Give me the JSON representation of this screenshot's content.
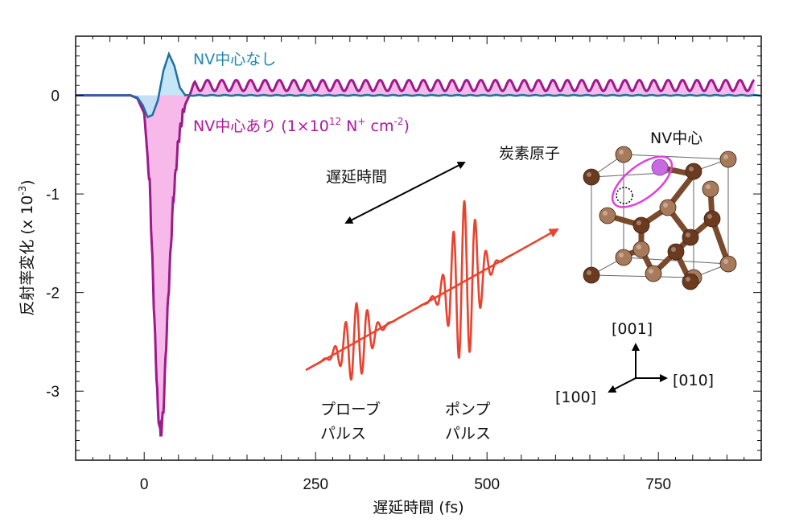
{
  "chart_data": {
    "type": "line",
    "title": "",
    "xlabel": "遅延時間 (fs)",
    "ylabel": "反射率変化 (x 10",
    "ylabel_exponent": "-3",
    "ylabel_close": ")",
    "xlim": [
      -100,
      900
    ],
    "ylim": [
      -3.7,
      0.6
    ],
    "xticks": [
      0,
      250,
      500,
      750
    ],
    "xtick_labels": [
      "0",
      "250",
      "500",
      "750"
    ],
    "yticks": [
      0,
      -1,
      -2,
      -3
    ],
    "ytick_labels": [
      "0",
      "-1",
      "-2",
      "-3"
    ],
    "series": [
      {
        "name": "NV中心なし",
        "color": "#1f6fa3",
        "fill": "#bfe3f5",
        "points": [
          [
            -100,
            0
          ],
          [
            -20,
            0
          ],
          [
            -10,
            -0.02
          ],
          [
            -2,
            -0.1
          ],
          [
            5,
            -0.22
          ],
          [
            12,
            -0.2
          ],
          [
            20,
            -0.05
          ],
          [
            28,
            0.25
          ],
          [
            36,
            0.42
          ],
          [
            44,
            0.3
          ],
          [
            52,
            0.08
          ],
          [
            60,
            0
          ],
          [
            900,
            0
          ]
        ]
      },
      {
        "name": "NV中心あり",
        "color": "#9b1b8a",
        "fill": "#f7b8ea",
        "dip_points": [
          [
            -100,
            0
          ],
          [
            -20,
            0
          ],
          [
            -10,
            -0.03
          ],
          [
            0,
            -0.18
          ],
          [
            8,
            -0.9
          ],
          [
            15,
            -2.3
          ],
          [
            20,
            -3.2
          ],
          [
            24,
            -3.45
          ],
          [
            28,
            -3.2
          ],
          [
            34,
            -2.2
          ],
          [
            42,
            -1.1
          ],
          [
            50,
            -0.45
          ],
          [
            58,
            -0.12
          ],
          [
            66,
            0
          ]
        ],
        "oscillation": {
          "start_fs": 66,
          "end_fs": 890,
          "offset": 0.1,
          "amplitude": 0.055,
          "period_fs": 21
        }
      }
    ],
    "annotations": {
      "label_no_nv": "NV中心なし",
      "label_nv_prefix": "NV中心あり (1×10",
      "label_nv_sup1": "12",
      "label_nv_mid": " N",
      "label_nv_sup2": "+",
      "label_nv_suffix": " cm",
      "label_nv_sup3": "-2",
      "label_nv_end": ")",
      "delay_label": "遅延時間",
      "probe_label_line1": "プローブ",
      "probe_label_line2": "パルス",
      "pump_label_line1": "ポンプ",
      "pump_label_line2": "パルス",
      "carbon_label": "炭素原子",
      "nv_center_label": "NV中心",
      "axis_001": "[001]",
      "axis_010": "[010]",
      "axis_100": "[100]"
    },
    "colors": {
      "axis": "#111111",
      "pulse": "#e8432f",
      "arrow_black": "#000000",
      "atom_dark": "#6b3a1f",
      "atom_light": "#a87a5c",
      "nv_ring": "#e040e0",
      "nv_fill": "#c96ae0"
    }
  }
}
